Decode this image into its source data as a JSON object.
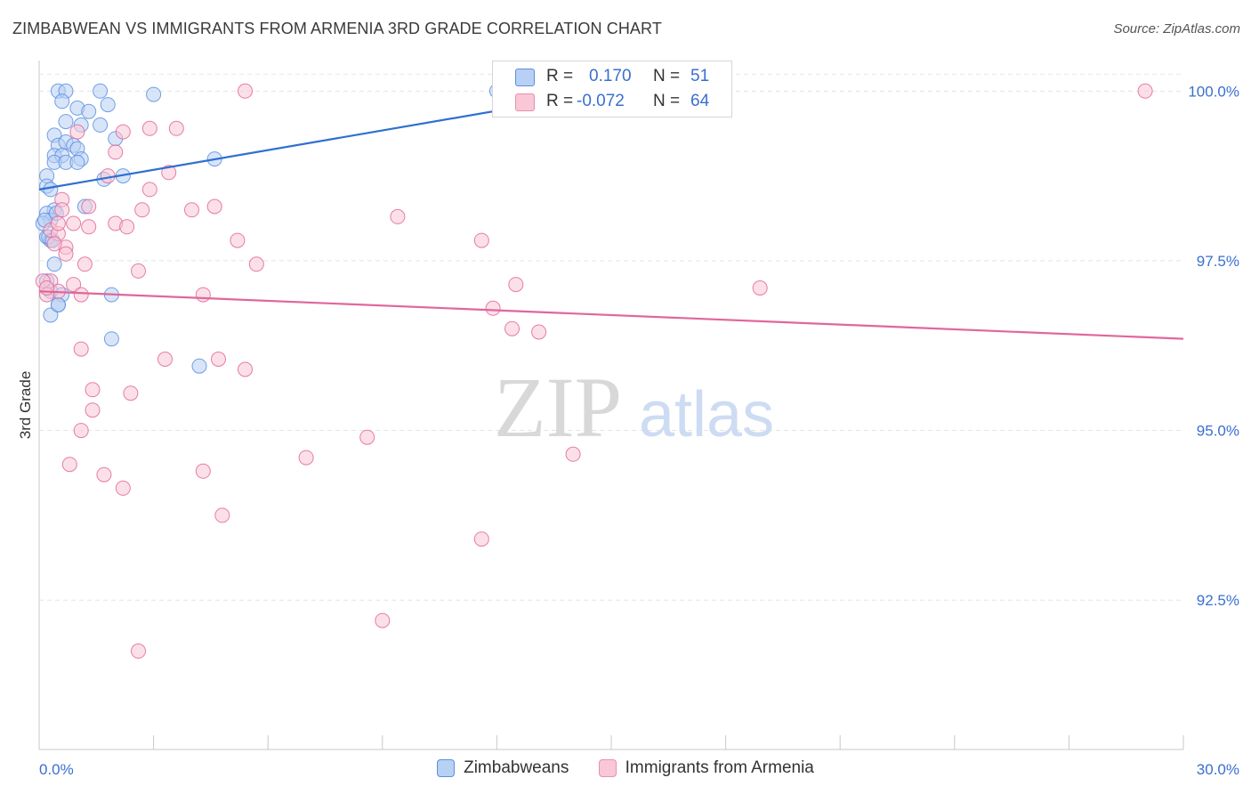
{
  "title": "ZIMBABWEAN VS IMMIGRANTS FROM ARMENIA 3RD GRADE CORRELATION CHART",
  "source": "Source: ZipAtlas.com",
  "watermark": {
    "zip": "ZIP",
    "atlas": "atlas"
  },
  "stats": {
    "r_label": "R =",
    "n_label": "N =",
    "rows": [
      {
        "r": "0.170",
        "n": "51",
        "fill": "#b8d0f4",
        "stroke": "#5b8fe0"
      },
      {
        "r": "-0.072",
        "n": "64",
        "fill": "#f9c7d6",
        "stroke": "#ea8fae"
      }
    ]
  },
  "chart_data": {
    "type": "scatter",
    "ylabel": "3rd Grade",
    "xlim": [
      0,
      30
    ],
    "ylim": [
      90.3,
      100.45
    ],
    "x_tick_labels": [
      {
        "x": 0,
        "label": "0.0%"
      },
      {
        "x": 30,
        "label": "30.0%"
      }
    ],
    "y_ticks": [
      {
        "y": 100.0,
        "label": "100.0%"
      },
      {
        "y": 97.5,
        "label": "97.5%"
      },
      {
        "y": 95.0,
        "label": "95.0%"
      },
      {
        "y": 92.5,
        "label": "92.5%"
      }
    ],
    "x_minor_ticks": [
      0,
      3,
      6,
      9,
      12,
      15,
      18,
      21,
      24,
      27,
      30
    ],
    "grid": true,
    "legend_placement": "bottom-center",
    "series": [
      {
        "name": "Zimbabweans",
        "color": "#5b8fe0",
        "fill": "#b8d0f4",
        "trend": {
          "x": [
            0,
            15
          ],
          "y": [
            98.55,
            100.0
          ]
        },
        "trend_style": "solid",
        "points": [
          [
            0.5,
            100.0
          ],
          [
            0.7,
            100.0
          ],
          [
            1.6,
            100.0
          ],
          [
            3.0,
            99.95
          ],
          [
            0.6,
            99.85
          ],
          [
            1.8,
            99.8
          ],
          [
            1.0,
            99.75
          ],
          [
            1.3,
            99.7
          ],
          [
            0.7,
            99.55
          ],
          [
            1.1,
            99.5
          ],
          [
            1.6,
            99.5
          ],
          [
            0.4,
            99.35
          ],
          [
            2.0,
            99.3
          ],
          [
            0.5,
            99.2
          ],
          [
            0.7,
            99.25
          ],
          [
            0.9,
            99.2
          ],
          [
            1.0,
            99.15
          ],
          [
            0.4,
            99.05
          ],
          [
            0.6,
            99.05
          ],
          [
            1.1,
            99.0
          ],
          [
            0.4,
            98.95
          ],
          [
            0.7,
            98.95
          ],
          [
            1.0,
            98.95
          ],
          [
            4.6,
            99.0
          ],
          [
            0.2,
            98.75
          ],
          [
            2.2,
            98.75
          ],
          [
            1.7,
            98.7
          ],
          [
            0.2,
            98.6
          ],
          [
            0.3,
            98.55
          ],
          [
            0.4,
            98.25
          ],
          [
            1.2,
            98.3
          ],
          [
            0.2,
            98.2
          ],
          [
            0.3,
            98.1
          ],
          [
            0.1,
            98.05
          ],
          [
            0.2,
            97.85
          ],
          [
            0.3,
            97.8
          ],
          [
            0.4,
            97.45
          ],
          [
            0.2,
            97.2
          ],
          [
            0.3,
            97.05
          ],
          [
            0.6,
            97.0
          ],
          [
            1.9,
            97.0
          ],
          [
            0.5,
            96.85
          ],
          [
            0.3,
            96.7
          ],
          [
            1.9,
            96.35
          ],
          [
            4.2,
            95.95
          ],
          [
            12.0,
            100.0
          ],
          [
            0.25,
            97.85
          ],
          [
            0.35,
            97.8
          ],
          [
            0.15,
            98.1
          ],
          [
            0.5,
            96.85
          ],
          [
            0.45,
            98.2
          ]
        ]
      },
      {
        "name": "Immigrants from Armenia",
        "color": "#e0679a",
        "fill": "#f9c7d6",
        "trend": {
          "x": [
            0,
            30
          ],
          "y": [
            97.05,
            96.35
          ]
        },
        "trend_style": "solid",
        "points": [
          [
            5.4,
            100.0
          ],
          [
            29.0,
            100.0
          ],
          [
            2.9,
            99.45
          ],
          [
            3.6,
            99.45
          ],
          [
            1.0,
            99.4
          ],
          [
            2.2,
            99.4
          ],
          [
            2.0,
            99.1
          ],
          [
            3.4,
            98.8
          ],
          [
            1.8,
            98.75
          ],
          [
            2.9,
            98.55
          ],
          [
            0.6,
            98.4
          ],
          [
            1.3,
            98.3
          ],
          [
            0.6,
            98.25
          ],
          [
            2.7,
            98.25
          ],
          [
            4.6,
            98.3
          ],
          [
            4.0,
            98.25
          ],
          [
            9.4,
            98.15
          ],
          [
            0.9,
            98.05
          ],
          [
            1.3,
            98.0
          ],
          [
            2.0,
            98.05
          ],
          [
            2.3,
            98.0
          ],
          [
            0.3,
            97.95
          ],
          [
            0.5,
            97.9
          ],
          [
            0.7,
            97.7
          ],
          [
            5.2,
            97.8
          ],
          [
            11.6,
            97.8
          ],
          [
            0.7,
            97.6
          ],
          [
            1.2,
            97.45
          ],
          [
            5.7,
            97.45
          ],
          [
            2.6,
            97.35
          ],
          [
            0.3,
            97.2
          ],
          [
            0.9,
            97.15
          ],
          [
            12.5,
            97.15
          ],
          [
            18.9,
            97.1
          ],
          [
            0.5,
            97.05
          ],
          [
            1.1,
            97.0
          ],
          [
            4.3,
            97.0
          ],
          [
            0.2,
            97.0
          ],
          [
            11.9,
            96.8
          ],
          [
            12.4,
            96.5
          ],
          [
            13.1,
            96.45
          ],
          [
            1.1,
            96.2
          ],
          [
            3.3,
            96.05
          ],
          [
            4.7,
            96.05
          ],
          [
            5.4,
            95.9
          ],
          [
            1.4,
            95.6
          ],
          [
            2.4,
            95.55
          ],
          [
            1.4,
            95.3
          ],
          [
            1.1,
            95.0
          ],
          [
            8.6,
            94.9
          ],
          [
            14.0,
            94.65
          ],
          [
            7.0,
            94.6
          ],
          [
            0.8,
            94.5
          ],
          [
            4.3,
            94.4
          ],
          [
            1.7,
            94.35
          ],
          [
            2.2,
            94.15
          ],
          [
            4.8,
            93.75
          ],
          [
            11.6,
            93.4
          ],
          [
            9.0,
            92.2
          ],
          [
            2.6,
            91.75
          ],
          [
            0.1,
            97.2
          ],
          [
            0.2,
            97.1
          ],
          [
            0.4,
            97.75
          ],
          [
            0.5,
            98.05
          ]
        ]
      }
    ]
  }
}
